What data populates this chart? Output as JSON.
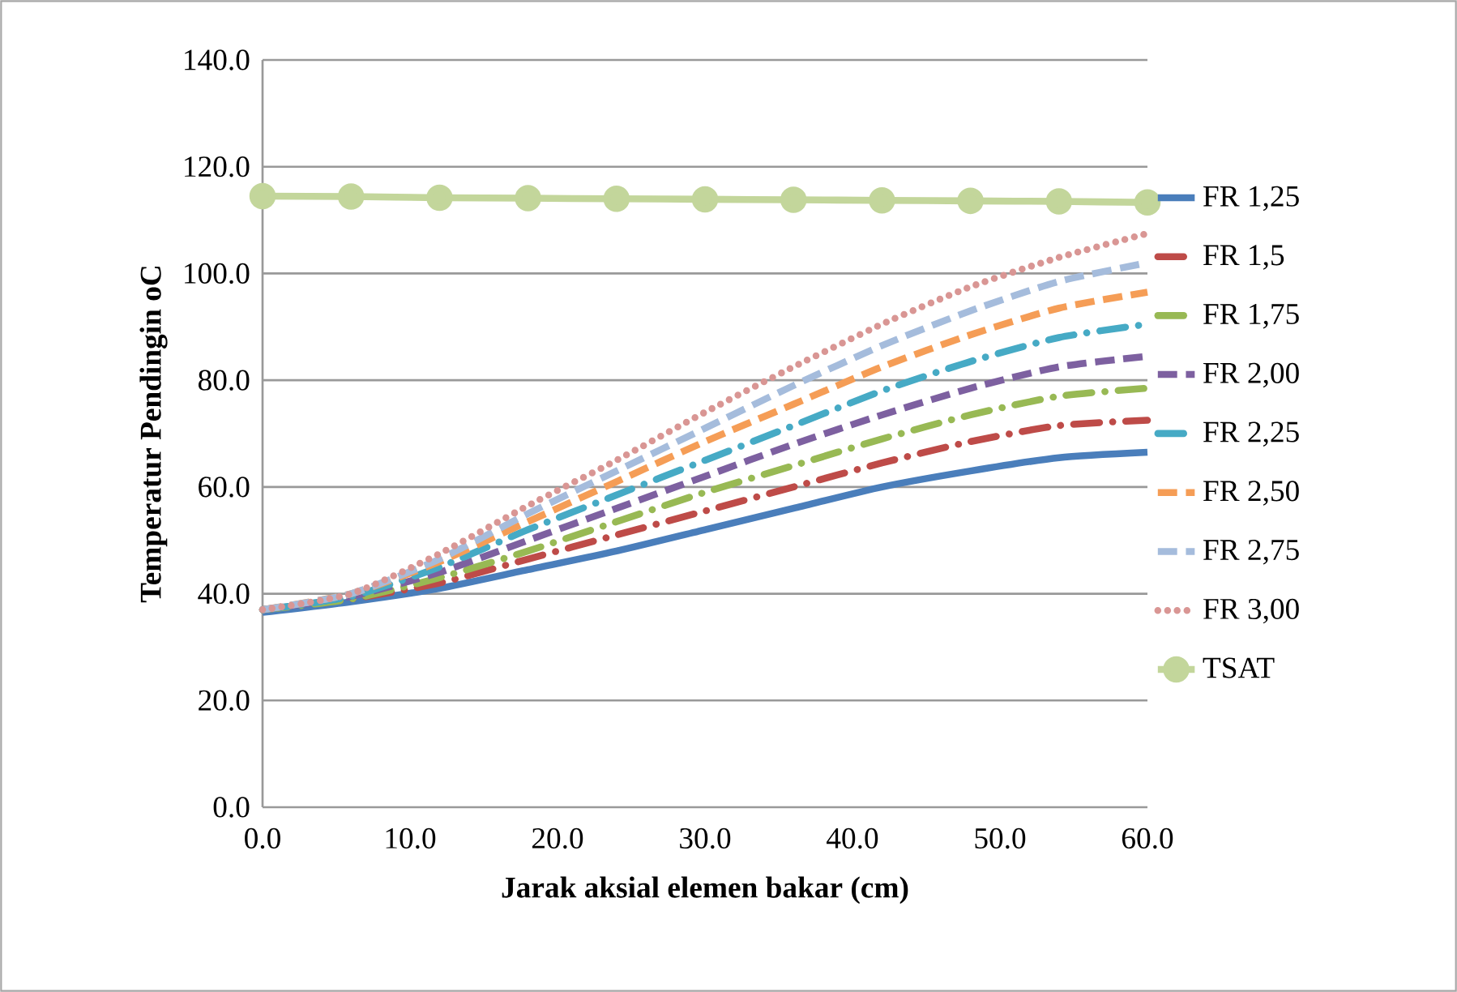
{
  "chart_data": {
    "type": "line",
    "xlabel": "Jarak aksial elemen bakar (cm)",
    "ylabel": "Temperatur Pendingin oC",
    "x": [
      0,
      6,
      12,
      18,
      24,
      30,
      36,
      42,
      48,
      54,
      60
    ],
    "xlim": [
      0,
      60
    ],
    "xticks": [
      {
        "value": 0,
        "label": "0.0"
      },
      {
        "value": 10,
        "label": "10.0"
      },
      {
        "value": 20,
        "label": "20.0"
      },
      {
        "value": 30,
        "label": "30.0"
      },
      {
        "value": 40,
        "label": "40.0"
      },
      {
        "value": 50,
        "label": "50.0"
      },
      {
        "value": 60,
        "label": "60.0"
      }
    ],
    "ylim": [
      0,
      140
    ],
    "yticks": [
      {
        "value": 0,
        "label": "0.0"
      },
      {
        "value": 20,
        "label": "20.0"
      },
      {
        "value": 40,
        "label": "40.0"
      },
      {
        "value": 60,
        "label": "60.0"
      },
      {
        "value": 80,
        "label": "80.0"
      },
      {
        "value": 100,
        "label": "100.0"
      },
      {
        "value": 120,
        "label": "120.0"
      },
      {
        "value": 140,
        "label": "140.0"
      }
    ],
    "grid": "y",
    "legend": "right",
    "series": [
      {
        "name": "FR 1,25",
        "color": "#4a7ebb",
        "line_style": "solid",
        "values": [
          36.5,
          38.5,
          41,
          44.5,
          48,
          52,
          56,
          60,
          63,
          65.5,
          66.5
        ]
      },
      {
        "name": "FR 1,5",
        "color": "#be4b48",
        "line_style": "dashdot",
        "values": [
          37,
          39,
          42,
          46.5,
          51,
          55.5,
          60,
          64.5,
          68.5,
          71.5,
          72.5
        ]
      },
      {
        "name": "FR 1,75",
        "color": "#98b954",
        "line_style": "dashdot",
        "values": [
          37,
          39,
          43,
          48,
          53.5,
          59,
          64,
          69,
          73.5,
          77,
          78.5
        ]
      },
      {
        "name": "FR 2,00",
        "color": "#7d60a0",
        "line_style": "dashed",
        "values": [
          37,
          39.5,
          44,
          50,
          56,
          62,
          68,
          73.5,
          78.5,
          82.5,
          84.5
        ]
      },
      {
        "name": "FR 2,25",
        "color": "#46aac5",
        "line_style": "dashdot",
        "values": [
          37,
          39.5,
          45,
          52,
          58.5,
          65,
          71.5,
          78,
          83.5,
          88,
          90.5
        ]
      },
      {
        "name": "FR 2,50",
        "color": "#f59d56",
        "line_style": "dashed",
        "values": [
          37,
          40,
          46,
          53.5,
          61,
          68.5,
          75.5,
          82.5,
          88.5,
          93.5,
          96.5
        ]
      },
      {
        "name": "FR 2,75",
        "color": "#a5bcdc",
        "line_style": "dashed",
        "values": [
          37,
          40,
          46.5,
          55,
          63,
          71,
          79,
          86.5,
          93,
          98.5,
          102
        ]
      },
      {
        "name": "FR 3,00",
        "color": "#d99694",
        "line_style": "dotted",
        "values": [
          37,
          40,
          47.5,
          56.5,
          65,
          74,
          82.5,
          90.5,
          97.5,
          103,
          107.5
        ]
      },
      {
        "name": "TSAT",
        "color": "#c3d69b",
        "line_style": "solid",
        "marker": "circle",
        "values": [
          114.5,
          114.4,
          114.2,
          114.1,
          114.0,
          113.9,
          113.8,
          113.7,
          113.6,
          113.5,
          113.3
        ]
      }
    ]
  }
}
